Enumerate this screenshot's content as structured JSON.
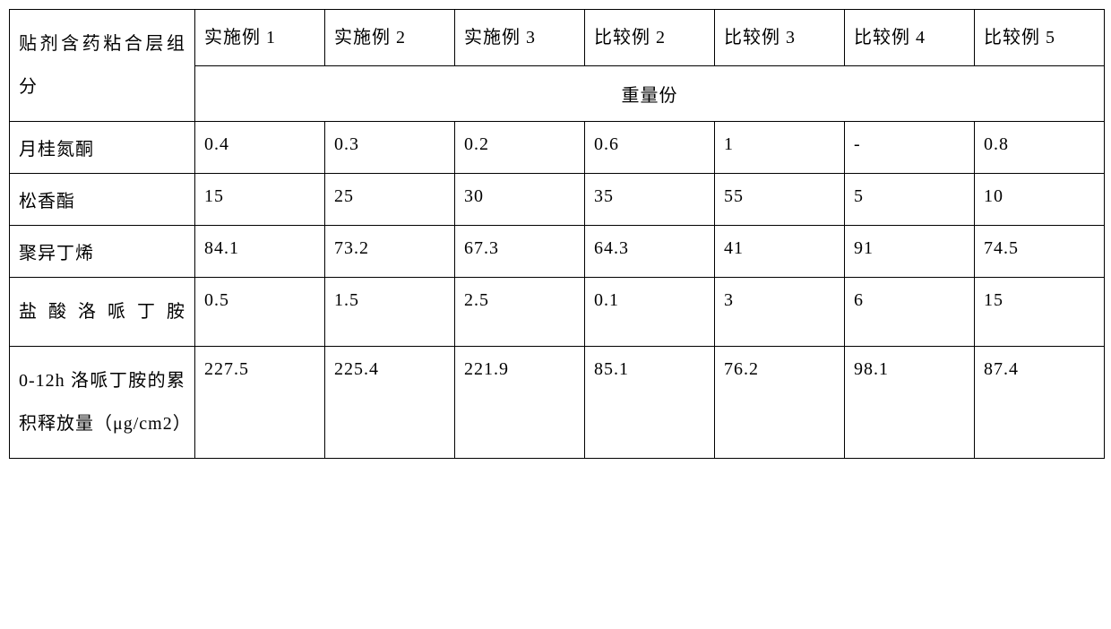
{
  "table": {
    "columns": [
      "实施例 1",
      "实施例 2",
      "实施例 3",
      "比较例 2",
      "比较例 3",
      "比较例 4",
      "比较例 5"
    ],
    "row_header_label": "贴剂含药粘合层组分",
    "merged_header": "重量份",
    "rows": [
      {
        "label": "月桂氮酮",
        "values": [
          "0.4",
          "0.3",
          "0.2",
          "0.6",
          "1",
          "-",
          "0.8"
        ]
      },
      {
        "label": "松香酯",
        "values": [
          "15",
          "25",
          "30",
          "35",
          "55",
          "5",
          "10"
        ]
      },
      {
        "label": "聚异丁烯",
        "values": [
          "84.1",
          "73.2",
          "67.3",
          "64.3",
          "41",
          "91",
          "74.5"
        ]
      },
      {
        "label": "盐酸洛哌丁胺",
        "values": [
          "0.5",
          "1.5",
          "2.5",
          "0.1",
          "3",
          "6",
          "15"
        ]
      },
      {
        "label": "0-12h 洛哌丁胺的累积释放量（μg/cm2）",
        "values": [
          "227.5",
          "225.4",
          "221.9",
          "85.1",
          "76.2",
          "98.1",
          "87.4"
        ]
      }
    ],
    "font_size": 20,
    "border_color": "#000000",
    "background_color": "#ffffff",
    "text_color": "#000000",
    "cell_padding": 14,
    "first_col_width": 207,
    "data_col_width": 145
  }
}
